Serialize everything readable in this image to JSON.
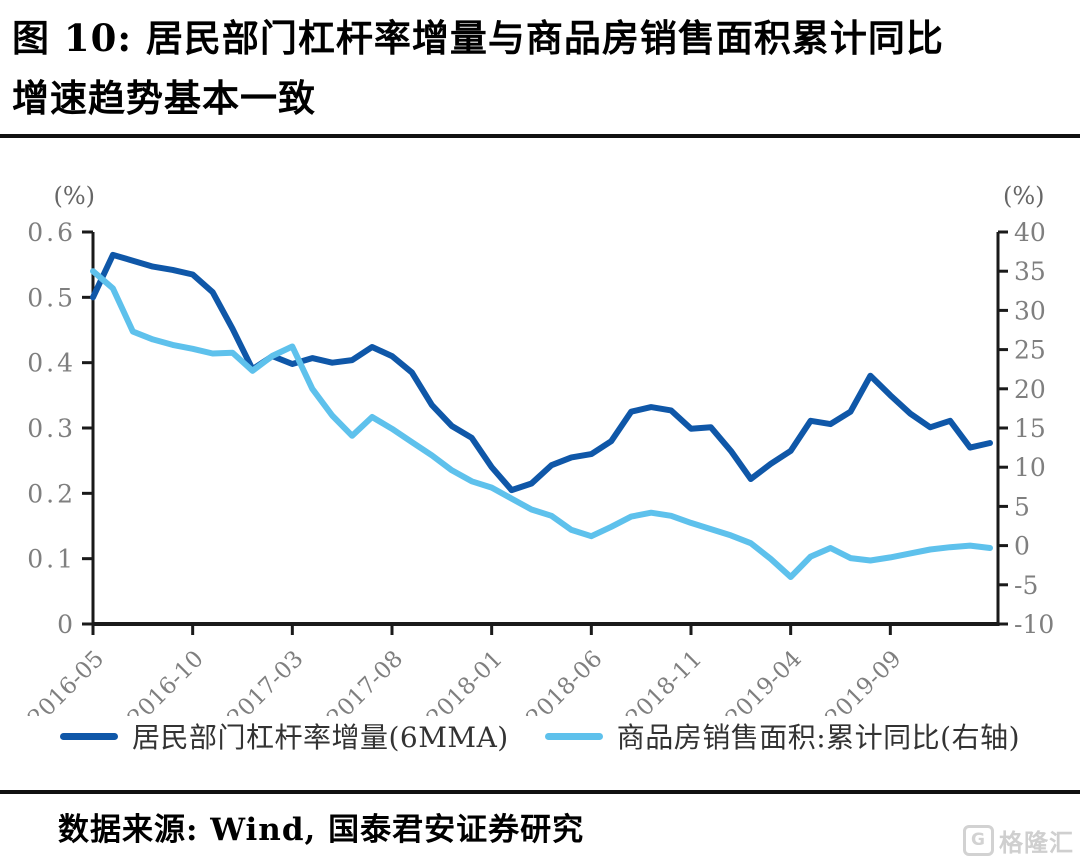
{
  "header": {
    "title_line1": "图 10:  居民部门杠杆率增量与商品房销售面积累计同比",
    "title_line2": "增速趋势基本一致"
  },
  "chart_data": {
    "type": "line",
    "title": "居民部门杠杆率增量与商品房销售面积累计同比增速",
    "grid": false,
    "legend_position": "bottom",
    "left_axis": {
      "unit": "(%)",
      "min": 0,
      "max": 0.6,
      "ticks": [
        {
          "v": 0.6,
          "label": "0.6"
        },
        {
          "v": 0.5,
          "label": "0.5"
        },
        {
          "v": 0.4,
          "label": "0.4"
        },
        {
          "v": 0.3,
          "label": "0.3"
        },
        {
          "v": 0.2,
          "label": "0.2"
        },
        {
          "v": 0.1,
          "label": "0.1"
        },
        {
          "v": 0,
          "label": "0"
        }
      ]
    },
    "right_axis": {
      "unit": "(%)",
      "min": -10,
      "max": 40,
      "ticks": [
        {
          "v": 40,
          "label": "40"
        },
        {
          "v": 35,
          "label": "35"
        },
        {
          "v": 30,
          "label": "30"
        },
        {
          "v": 25,
          "label": "25"
        },
        {
          "v": 20,
          "label": "20"
        },
        {
          "v": 15,
          "label": "15"
        },
        {
          "v": 10,
          "label": "10"
        },
        {
          "v": 5,
          "label": "5"
        },
        {
          "v": 0,
          "label": "0"
        },
        {
          "v": -5,
          "label": "-5"
        },
        {
          "v": -10,
          "label": "-10"
        }
      ]
    },
    "x_months": [
      "2016-05",
      "2016-06",
      "2016-07",
      "2016-08",
      "2016-09",
      "2016-10",
      "2016-11",
      "2016-12",
      "2017-01",
      "2017-02",
      "2017-03",
      "2017-04",
      "2017-05",
      "2017-06",
      "2017-07",
      "2017-08",
      "2017-09",
      "2017-10",
      "2017-11",
      "2017-12",
      "2018-01",
      "2018-02",
      "2018-03",
      "2018-04",
      "2018-05",
      "2018-06",
      "2018-07",
      "2018-08",
      "2018-09",
      "2018-10",
      "2018-11",
      "2018-12",
      "2019-01",
      "2019-02",
      "2019-03",
      "2019-04",
      "2019-05",
      "2019-06",
      "2019-07",
      "2019-08",
      "2019-09",
      "2019-10",
      "2019-11",
      "2019-12",
      "2020-01",
      "2020-02"
    ],
    "x_ticks": [
      {
        "i": 0,
        "label": "2016-05"
      },
      {
        "i": 5,
        "label": "2016-10"
      },
      {
        "i": 10,
        "label": "2017-03"
      },
      {
        "i": 15,
        "label": "2017-08"
      },
      {
        "i": 20,
        "label": "2018-01"
      },
      {
        "i": 25,
        "label": "2018-06"
      },
      {
        "i": 30,
        "label": "2018-11"
      },
      {
        "i": 35,
        "label": "2019-04"
      },
      {
        "i": 40,
        "label": "2019-09"
      }
    ],
    "series": [
      {
        "name": "居民部门杠杆率增量(6MMA)",
        "axis": "left",
        "color": "#0F57A8",
        "values": [
          0.5,
          0.565,
          0.556,
          0.547,
          0.542,
          0.535,
          0.508,
          0.452,
          0.39,
          0.41,
          0.398,
          0.407,
          0.4,
          0.404,
          0.424,
          0.41,
          0.385,
          0.335,
          0.303,
          0.285,
          0.24,
          0.205,
          0.215,
          0.243,
          0.255,
          0.26,
          0.28,
          0.325,
          0.332,
          0.327,
          0.299,
          0.301,
          0.265,
          0.222,
          0.245,
          0.265,
          0.311,
          0.306,
          0.325,
          0.38,
          0.35,
          0.322,
          0.301,
          0.311,
          0.27,
          0.277
        ]
      },
      {
        "name": "商品房销售面积:累计同比(右轴)",
        "axis": "right",
        "color": "#5EC1EC",
        "values": [
          35.0,
          32.8,
          27.3,
          26.3,
          25.6,
          25.1,
          24.5,
          24.6,
          22.3,
          24.2,
          25.4,
          20.0,
          16.6,
          14.0,
          16.4,
          14.9,
          13.2,
          11.5,
          9.6,
          8.2,
          7.4,
          6.0,
          4.6,
          3.8,
          2.0,
          1.2,
          2.4,
          3.7,
          4.2,
          3.8,
          2.9,
          2.1,
          1.3,
          0.3,
          -1.7,
          -4.0,
          -1.4,
          -0.3,
          -1.6,
          -1.9,
          -1.5,
          -1.0,
          -0.5,
          -0.2,
          0.0,
          -0.3
        ]
      }
    ]
  },
  "footer": {
    "source": "数据来源: Wind, 国泰君安证券研究",
    "watermark": "格隆汇",
    "watermark_icon": "G"
  }
}
